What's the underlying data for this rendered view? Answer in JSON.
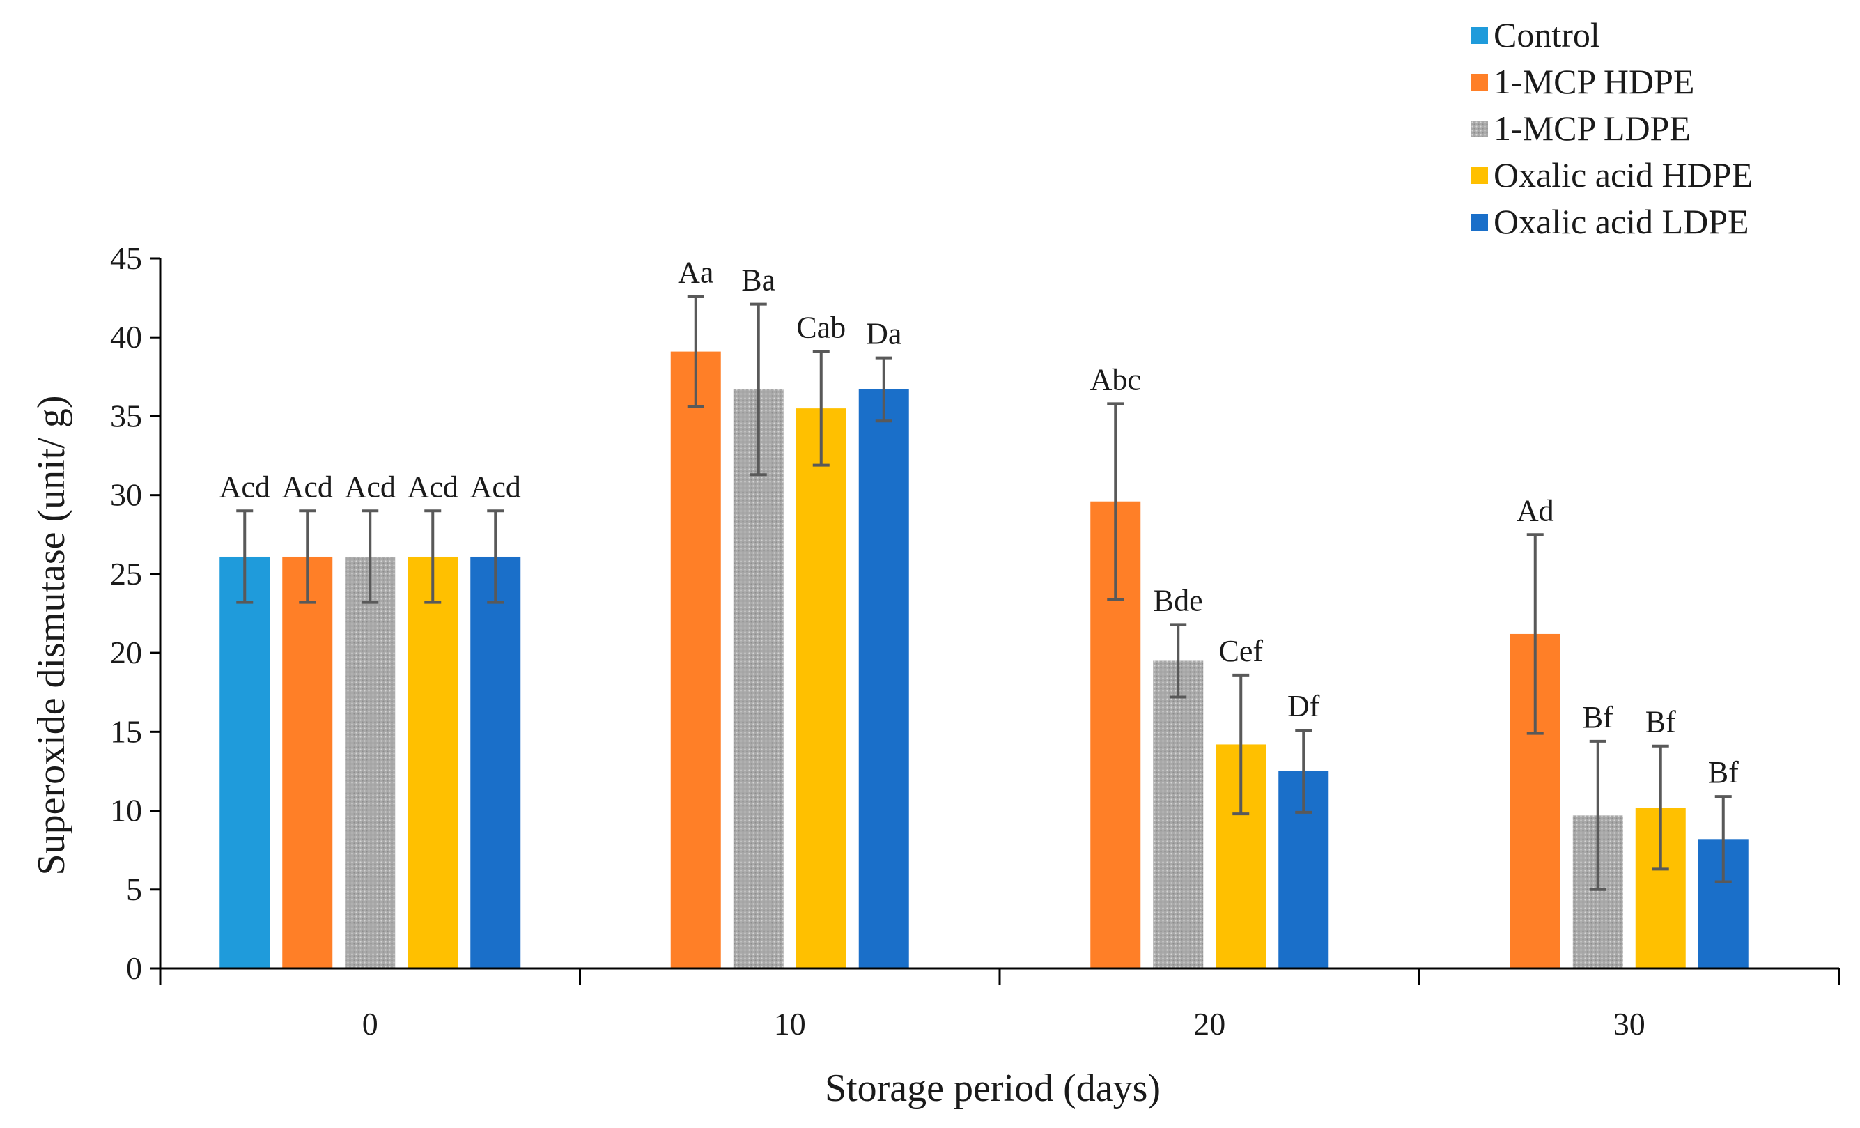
{
  "chart_data": {
    "type": "bar",
    "title": "",
    "xlabel": "Storage period (days)",
    "ylabel": "Superoxide dismutase (unit/ g)",
    "ylim": [
      0,
      45
    ],
    "yticks": [
      0,
      5,
      10,
      15,
      20,
      25,
      30,
      35,
      40,
      45
    ],
    "categories": [
      "0",
      "10",
      "20",
      "30"
    ],
    "legend_position": "top-right",
    "series": [
      {
        "name": "Control",
        "color": "#1F9BDB",
        "pattern": "solid",
        "values": [
          26.1,
          null,
          null,
          null
        ],
        "errors": [
          2.9,
          null,
          null,
          null
        ],
        "labels": [
          "Acd",
          null,
          null,
          null
        ]
      },
      {
        "name": "1-MCP HDPE",
        "color": "#FF7F27",
        "pattern": "solid",
        "values": [
          26.1,
          39.1,
          29.6,
          21.2
        ],
        "errors": [
          2.9,
          3.5,
          6.2,
          6.3
        ],
        "labels": [
          "Acd",
          "Aa",
          "Abc",
          "Ad"
        ]
      },
      {
        "name": "1-MCP LDPE",
        "color": "#A5A5A5",
        "pattern": "dotted",
        "values": [
          26.1,
          36.7,
          19.5,
          9.7
        ],
        "errors": [
          2.9,
          5.4,
          2.3,
          4.7
        ],
        "labels": [
          "Acd",
          "Ba",
          "Bde",
          "Bf"
        ]
      },
      {
        "name": "Oxalic acid HDPE",
        "color": "#FFC000",
        "pattern": "solid",
        "values": [
          26.1,
          35.5,
          14.2,
          10.2
        ],
        "errors": [
          2.9,
          3.6,
          4.4,
          3.9
        ],
        "labels": [
          "Acd",
          "Cab",
          "Cef",
          "Bf"
        ]
      },
      {
        "name": "Oxalic acid LDPE",
        "color": "#1A6FC9",
        "pattern": "solid",
        "values": [
          26.1,
          36.7,
          12.5,
          8.2
        ],
        "errors": [
          2.9,
          2.0,
          2.6,
          2.7
        ],
        "labels": [
          "Acd",
          "Da",
          "Df",
          "Bf"
        ]
      }
    ]
  }
}
